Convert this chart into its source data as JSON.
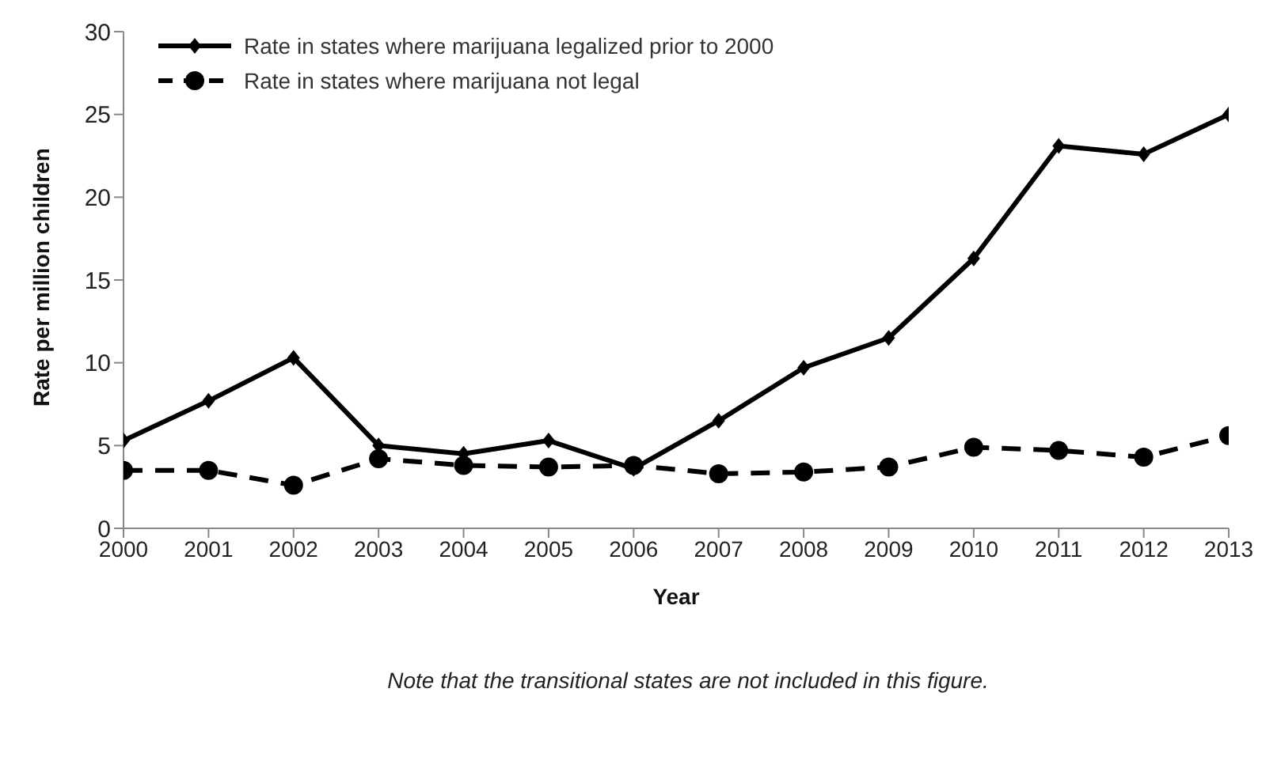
{
  "chart_data": {
    "type": "line",
    "xlabel": "Year",
    "ylabel": "Rate per million children",
    "x": [
      2000,
      2001,
      2002,
      2003,
      2004,
      2005,
      2006,
      2007,
      2008,
      2009,
      2010,
      2011,
      2012,
      2013
    ],
    "xlim": [
      2000,
      2013
    ],
    "xticks": [
      2000,
      2001,
      2002,
      2003,
      2004,
      2005,
      2006,
      2007,
      2008,
      2009,
      2010,
      2011,
      2012,
      2013
    ],
    "ylim": [
      0,
      30
    ],
    "yticks": [
      0,
      5,
      10,
      15,
      20,
      25,
      30
    ],
    "grid": false,
    "legend": "top left",
    "series": [
      {
        "name": "Rate in states where marijuana legalized prior to 2000",
        "color": "#000000",
        "marker": "diamond",
        "line_style": "solid",
        "values": [
          5.3,
          7.7,
          10.3,
          5.0,
          4.5,
          5.3,
          3.6,
          6.5,
          9.7,
          11.5,
          16.3,
          23.1,
          22.6,
          25.0
        ]
      },
      {
        "name": "Rate in states where marijuana not legal",
        "color": "#000000",
        "marker": "circle",
        "line_style": "dashed",
        "values": [
          3.5,
          3.5,
          2.6,
          4.2,
          3.8,
          3.7,
          3.8,
          3.3,
          3.4,
          3.7,
          4.9,
          4.7,
          4.3,
          5.6
        ]
      }
    ],
    "annotations": [
      "Note that the transitional states are not included in this figure."
    ]
  }
}
